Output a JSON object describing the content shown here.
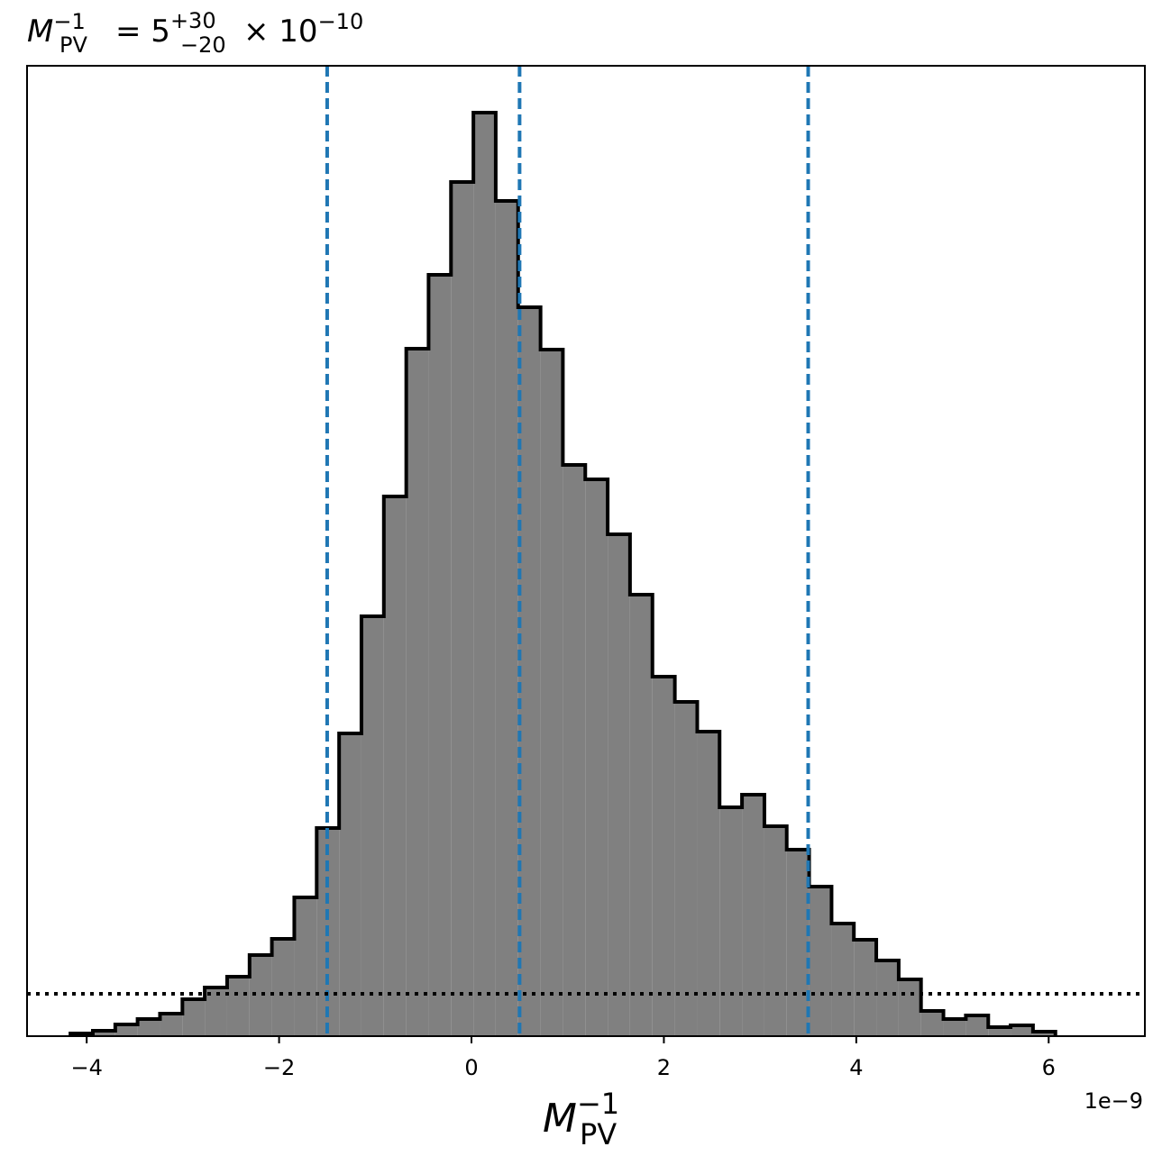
{
  "chart_data": {
    "type": "histogram",
    "title": {
      "symbol": "M",
      "sup": "−1",
      "sub": "PV",
      "equals": "= 5",
      "plus": "+30",
      "minus": "−20",
      "times": "× 10",
      "exponent": "−10"
    },
    "xlabel": {
      "symbol": "M",
      "sup": "−1",
      "sub": "PV"
    },
    "x_offset_label": "1e−9",
    "bins": [
      -4.169,
      -3.936,
      -3.703,
      -3.471,
      -3.238,
      -3.005,
      -2.773,
      -2.54,
      -2.307,
      -2.075,
      -1.842,
      -1.609,
      -1.376,
      -1.144,
      -0.911,
      -0.678,
      -0.446,
      -0.213,
      0.02,
      0.252,
      0.485,
      0.718,
      0.95,
      1.183,
      1.416,
      1.648,
      1.881,
      2.114,
      2.347,
      2.579,
      2.812,
      3.045,
      3.277,
      3.51,
      3.743,
      3.975,
      4.208,
      4.441,
      4.673,
      4.906,
      5.139,
      5.372,
      5.604,
      5.837,
      6.07
    ],
    "counts": [
      3,
      6,
      13,
      19,
      25,
      41,
      54,
      66,
      90,
      108,
      154,
      231,
      336,
      466,
      599,
      763,
      845,
      948,
      1025,
      927,
      809,
      762,
      634,
      618,
      557,
      490,
      399,
      371,
      338,
      254,
      268,
      233,
      207,
      166,
      125,
      107,
      84,
      63,
      28,
      19,
      23,
      10,
      12,
      5
    ],
    "color": "#808080",
    "edge_color": "#000000",
    "quantile_lines": [
      -1.5,
      0.5,
      3.5
    ],
    "quantile_color": "#1f77b4",
    "threshold_line": 47,
    "xlim": [
      -4.62,
      7.0
    ],
    "ylim": [
      0,
      1077
    ],
    "xticks": [
      {
        "value": -4,
        "label": "−4"
      },
      {
        "value": -2,
        "label": "−2"
      },
      0,
      2,
      4,
      6
    ]
  }
}
